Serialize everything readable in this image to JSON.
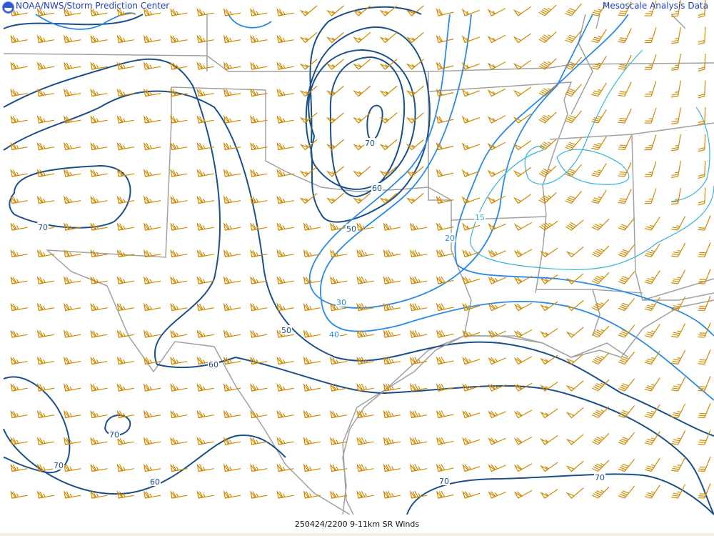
{
  "header": {
    "left_title": "NOAA/NWS/Storm Prediction Center",
    "right_title": "Mesoscale Analysis Data",
    "logo": "noaa-logo"
  },
  "footer": {
    "caption": "250424/2200 9-11km SR Winds"
  },
  "colors": {
    "barb": "#d08a00",
    "contour_high": "#1a4f8a",
    "contour_mid": "#2a8ae8",
    "contour_low": "#38b4d8",
    "borders": "#a0a0a0"
  },
  "contour_labels": [
    {
      "text": "70",
      "color": "contour_high"
    },
    {
      "text": "70",
      "color": "contour_high"
    },
    {
      "text": "60",
      "color": "contour_high"
    },
    {
      "text": "50",
      "color": "contour_high"
    },
    {
      "text": "50",
      "color": "contour_high"
    },
    {
      "text": "60",
      "color": "contour_high"
    },
    {
      "text": "70",
      "color": "contour_high"
    },
    {
      "text": "70",
      "color": "contour_high"
    },
    {
      "text": "60",
      "color": "contour_high"
    },
    {
      "text": "70",
      "color": "contour_high"
    },
    {
      "text": "70",
      "color": "contour_high"
    },
    {
      "text": "40",
      "color": "contour_mid"
    },
    {
      "text": "30",
      "color": "contour_mid"
    },
    {
      "text": "20",
      "color": "contour_mid"
    },
    {
      "text": "15",
      "color": "contour_low"
    }
  ]
}
